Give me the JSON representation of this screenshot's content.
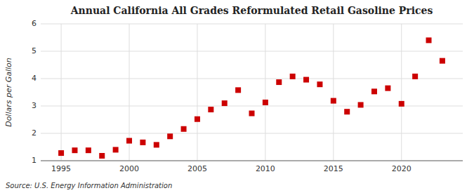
{
  "chart_data": {
    "type": "scatter",
    "title": "Annual California All Grades Reformulated Retail Gasoline Prices",
    "ylabel": "Dollars per Gallon",
    "annotations": [
      "Source: U.S. Energy Information Administration"
    ],
    "x": [
      1995,
      1996,
      1997,
      1998,
      1999,
      2000,
      2001,
      2002,
      2003,
      2004,
      2005,
      2006,
      2007,
      2008,
      2009,
      2010,
      2011,
      2012,
      2013,
      2014,
      2015,
      2016,
      2017,
      2018,
      2019,
      2020,
      2021,
      2022,
      2023
    ],
    "values": [
      1.28,
      1.38,
      1.38,
      1.18,
      1.4,
      1.73,
      1.67,
      1.58,
      1.89,
      2.16,
      2.52,
      2.87,
      3.1,
      3.58,
      2.73,
      3.13,
      3.87,
      4.08,
      3.96,
      3.79,
      3.19,
      2.79,
      3.04,
      3.53,
      3.65,
      3.08,
      4.08,
      5.4,
      4.65
    ],
    "color": "#cc0000",
    "marker": "square",
    "xlim": [
      1993.5,
      2024.5
    ],
    "ylim": [
      1,
      6
    ],
    "xticks": [
      1995,
      2000,
      2005,
      2010,
      2015,
      2020
    ],
    "yticks": [
      1,
      2,
      3,
      4,
      5,
      6
    ],
    "grid": true
  }
}
